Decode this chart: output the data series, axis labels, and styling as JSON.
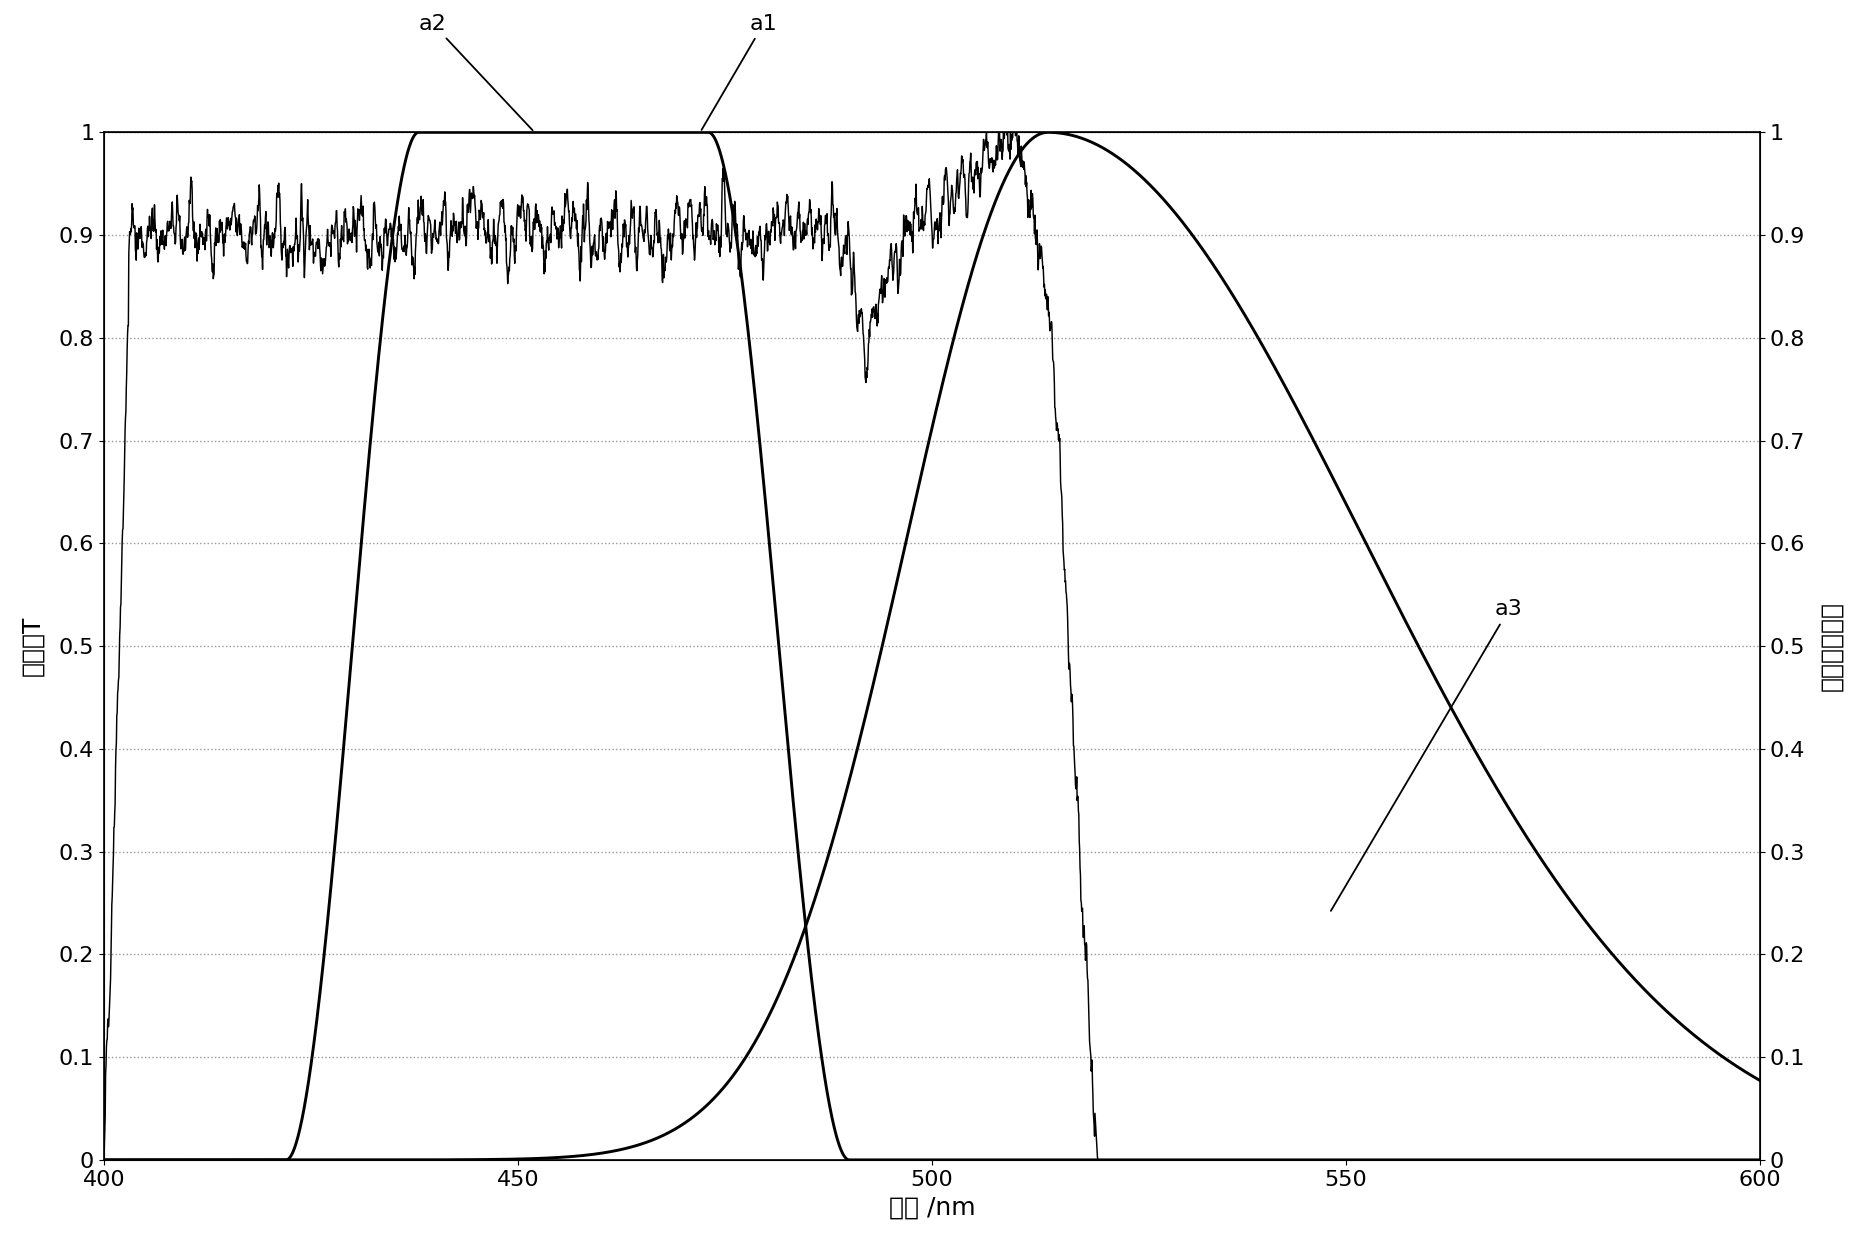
{
  "x_min": 400,
  "x_max": 600,
  "y_min": 0,
  "y_max": 1,
  "xlabel": "波长 /nm",
  "ylabel_left": "透过率T",
  "ylabel_right": "光谱相对强度",
  "xticks": [
    400,
    450,
    500,
    550,
    600
  ],
  "yticks": [
    0,
    0.1,
    0.2,
    0.3,
    0.4,
    0.5,
    0.6,
    0.7,
    0.8,
    0.9,
    1
  ],
  "background_color": "#ffffff",
  "grid_color": "#999999",
  "line_color": "#000000",
  "curve_linewidth": 1.5,
  "noise_seed": 42
}
